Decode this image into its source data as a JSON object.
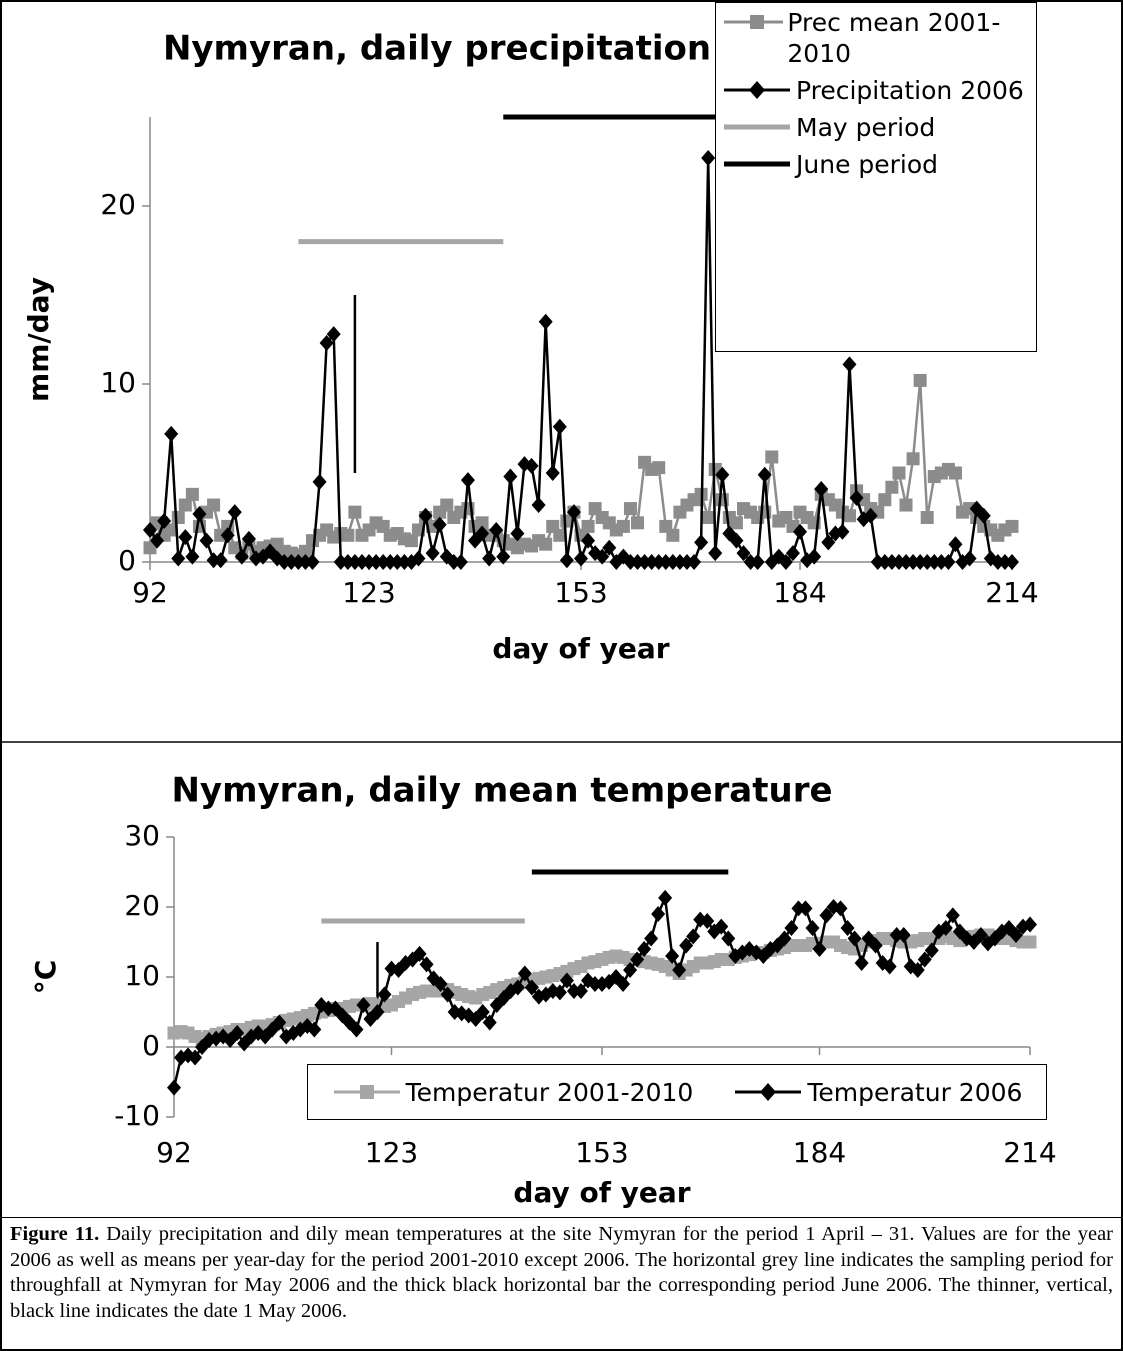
{
  "chart_data": [
    {
      "type": "line",
      "title": "Nymyran, daily precipitation",
      "x_label": "day of year",
      "y_label": "mm/day",
      "x": [
        92,
        93,
        94,
        95,
        96,
        97,
        98,
        99,
        100,
        101,
        102,
        103,
        104,
        105,
        106,
        107,
        108,
        109,
        110,
        111,
        112,
        113,
        114,
        115,
        116,
        117,
        118,
        119,
        120,
        121,
        122,
        123,
        124,
        125,
        126,
        127,
        128,
        129,
        130,
        131,
        132,
        133,
        134,
        135,
        136,
        137,
        138,
        139,
        140,
        141,
        142,
        143,
        144,
        145,
        146,
        147,
        148,
        149,
        150,
        151,
        152,
        153,
        154,
        155,
        156,
        157,
        158,
        159,
        160,
        161,
        162,
        163,
        164,
        165,
        166,
        167,
        168,
        169,
        170,
        171,
        172,
        173,
        174,
        175,
        176,
        177,
        178,
        179,
        180,
        181,
        182,
        183,
        184,
        185,
        186,
        187,
        188,
        189,
        190,
        191,
        192,
        193,
        194,
        195,
        196,
        197,
        198,
        199,
        200,
        201,
        202,
        203,
        204,
        205,
        206,
        207,
        208,
        209,
        210,
        211,
        212,
        213,
        214
      ],
      "xlim": [
        92,
        214
      ],
      "xticks": [
        92,
        123,
        153,
        184,
        214
      ],
      "ylim": [
        0,
        25
      ],
      "yticks": [
        0,
        10,
        20
      ],
      "legend": "top-right",
      "series": [
        {
          "name": "Prec mean 2001-2010",
          "color": "#8c8c8c",
          "marker": "square",
          "values": [
            0.8,
            2.2,
            1.5,
            1.8,
            2.5,
            3.2,
            3.8,
            2.0,
            2.8,
            3.2,
            1.5,
            2.0,
            0.8,
            0.5,
            1.0,
            0.6,
            0.8,
            0.9,
            1.0,
            0.6,
            0.5,
            0.4,
            0.6,
            1.2,
            1.5,
            1.8,
            1.4,
            1.6,
            1.5,
            2.8,
            1.5,
            1.8,
            2.2,
            2.0,
            1.5,
            1.6,
            1.3,
            1.2,
            1.8,
            2.5,
            2.0,
            2.8,
            3.2,
            2.5,
            2.8,
            3.0,
            2.0,
            2.2,
            1.5,
            1.5,
            1.2,
            1.0,
            0.8,
            1.0,
            0.9,
            1.2,
            1.0,
            2.0,
            1.5,
            2.3,
            2.8,
            1.5,
            2.0,
            3.0,
            2.5,
            2.2,
            1.8,
            2.0,
            3.0,
            2.2,
            5.6,
            5.2,
            5.3,
            2.0,
            1.5,
            2.8,
            3.2,
            3.5,
            3.8,
            2.5,
            5.2,
            3.5,
            2.5,
            2.2,
            3.0,
            2.8,
            2.5,
            2.8,
            5.9,
            2.3,
            2.5,
            2.0,
            2.8,
            2.5,
            2.2,
            3.8,
            3.5,
            3.2,
            2.8,
            2.6,
            4.0,
            3.5,
            3.0,
            2.8,
            3.5,
            4.2,
            5.0,
            3.2,
            5.8,
            10.2,
            2.5,
            4.8,
            5.0,
            5.2,
            5.0,
            2.8,
            3.0,
            2.5,
            2.0,
            1.8,
            1.5,
            1.8,
            2.0
          ]
        },
        {
          "name": "Precipitation 2006",
          "color": "#000000",
          "marker": "diamond",
          "values": [
            1.8,
            1.2,
            2.3,
            7.2,
            0.2,
            1.4,
            0.3,
            2.7,
            1.2,
            0.1,
            0.1,
            1.5,
            2.8,
            0.3,
            1.3,
            0.2,
            0.3,
            0.6,
            0.2,
            0,
            0,
            0,
            0,
            0,
            4.5,
            12.3,
            12.8,
            0,
            0,
            0,
            0,
            0,
            0,
            0,
            0,
            0,
            0,
            0,
            0.2,
            2.6,
            0.5,
            2.1,
            0.3,
            0,
            0,
            4.6,
            1.2,
            1.6,
            0.2,
            1.8,
            0.3,
            4.8,
            1.6,
            5.5,
            5.4,
            3.2,
            13.5,
            5.0,
            7.6,
            0.1,
            2.8,
            0.2,
            1.2,
            0.5,
            0.3,
            0.8,
            0,
            0.3,
            0,
            0,
            0,
            0,
            0,
            0,
            0,
            0,
            0,
            0,
            1.1,
            22.7,
            0.5,
            4.9,
            1.6,
            1.2,
            0.5,
            0,
            0,
            4.9,
            0,
            0.3,
            0,
            0.5,
            1.7,
            0.1,
            0.3,
            4.1,
            1.1,
            1.6,
            1.7,
            11.1,
            3.6,
            2.4,
            2.6,
            0,
            0,
            0,
            0,
            0,
            0,
            0,
            0,
            0,
            0,
            0,
            1.0,
            0,
            0.2,
            3.0,
            2.6,
            0.2,
            0,
            0,
            0
          ]
        },
        {
          "name": "May period",
          "color": "#a6a6a6",
          "width": 5,
          "x": [
            113,
            142
          ],
          "values": [
            18,
            18
          ]
        },
        {
          "name": "June period",
          "color": "#000000",
          "width": 5,
          "x": [
            142,
            172
          ],
          "values": [
            25,
            25
          ]
        }
      ],
      "extra_lines": [
        {
          "color": "#000000",
          "width": 2.5,
          "x": [
            121,
            121
          ],
          "values": [
            5,
            15
          ]
        }
      ]
    },
    {
      "type": "line",
      "title": "Nymyran, daily mean temperature",
      "x_label": "day of year",
      "y_label": "°C",
      "x": [
        92,
        93,
        94,
        95,
        96,
        97,
        98,
        99,
        100,
        101,
        102,
        103,
        104,
        105,
        106,
        107,
        108,
        109,
        110,
        111,
        112,
        113,
        114,
        115,
        116,
        117,
        118,
        119,
        120,
        121,
        122,
        123,
        124,
        125,
        126,
        127,
        128,
        129,
        130,
        131,
        132,
        133,
        134,
        135,
        136,
        137,
        138,
        139,
        140,
        141,
        142,
        143,
        144,
        145,
        146,
        147,
        148,
        149,
        150,
        151,
        152,
        153,
        154,
        155,
        156,
        157,
        158,
        159,
        160,
        161,
        162,
        163,
        164,
        165,
        166,
        167,
        168,
        169,
        170,
        171,
        172,
        173,
        174,
        175,
        176,
        177,
        178,
        179,
        180,
        181,
        182,
        183,
        184,
        185,
        186,
        187,
        188,
        189,
        190,
        191,
        192,
        193,
        194,
        195,
        196,
        197,
        198,
        199,
        200,
        201,
        202,
        203,
        204,
        205,
        206,
        207,
        208,
        209,
        210,
        211,
        212,
        213,
        214
      ],
      "xlim": [
        92,
        214
      ],
      "xticks": [
        92,
        123,
        153,
        184,
        214
      ],
      "ylim": [
        -10,
        30
      ],
      "yticks": [
        -10,
        0,
        10,
        20,
        30
      ],
      "legend": "bottom",
      "series": [
        {
          "name": "Temperatur 2001-2010",
          "color": "#a6a6a6",
          "marker": "square",
          "values": [
            2.0,
            2.2,
            2.0,
            1.5,
            1.2,
            1.5,
            1.8,
            2.0,
            2.2,
            2.5,
            2.5,
            2.8,
            3.0,
            3.0,
            3.2,
            3.5,
            3.8,
            4.0,
            4.2,
            4.5,
            4.8,
            5.0,
            5.2,
            5.5,
            5.5,
            5.8,
            6.0,
            6.0,
            6.2,
            6.0,
            5.8,
            6.0,
            6.5,
            7.0,
            7.5,
            7.8,
            8.0,
            8.0,
            8.0,
            8.2,
            7.8,
            7.5,
            7.2,
            7.0,
            7.5,
            7.8,
            8.2,
            8.5,
            8.8,
            9.0,
            9.2,
            9.5,
            9.8,
            10.0,
            10.2,
            10.5,
            10.8,
            11.2,
            11.5,
            12.0,
            12.2,
            12.5,
            12.8,
            13.0,
            12.8,
            12.5,
            12.5,
            12.2,
            12.0,
            11.8,
            11.5,
            11.0,
            10.5,
            11.0,
            11.5,
            12.0,
            12.0,
            12.2,
            12.5,
            12.5,
            12.8,
            13.0,
            13.2,
            13.5,
            13.5,
            13.8,
            14.0,
            14.2,
            14.5,
            14.5,
            14.5,
            14.8,
            14.8,
            15.0,
            15.0,
            14.5,
            14.2,
            14.0,
            14.5,
            15.0,
            15.2,
            15.5,
            15.5,
            15.2,
            15.0,
            15.0,
            15.2,
            15.5,
            15.5,
            15.5,
            15.8,
            15.5,
            15.2,
            15.5,
            15.8,
            16.0,
            16.0,
            15.8,
            15.5,
            15.5,
            15.2,
            15.0,
            15.0
          ]
        },
        {
          "name": "Temperatur 2006",
          "color": "#000000",
          "marker": "diamond",
          "values": [
            -5.8,
            -1.5,
            -1.2,
            -1.5,
            0.0,
            1.0,
            1.2,
            1.5,
            1.0,
            2.0,
            0.5,
            1.5,
            2.0,
            1.5,
            2.5,
            3.5,
            1.5,
            2.0,
            2.5,
            3.0,
            2.5,
            6.0,
            5.5,
            5.5,
            4.5,
            3.5,
            2.5,
            6.0,
            4.0,
            5.0,
            7.5,
            11.2,
            11.0,
            12.0,
            12.5,
            13.3,
            11.8,
            9.8,
            9.0,
            7.5,
            5.0,
            4.8,
            4.5,
            4.0,
            5.0,
            3.5,
            6.0,
            7.0,
            8.0,
            8.5,
            10.5,
            8.5,
            7.2,
            7.5,
            8.0,
            7.8,
            9.5,
            8.0,
            8.0,
            9.5,
            9.0,
            9.0,
            9.3,
            10.0,
            9.0,
            11.0,
            12.5,
            14.0,
            15.5,
            19.0,
            21.3,
            13.0,
            11.0,
            14.5,
            15.8,
            18.2,
            18.0,
            16.5,
            17.2,
            15.5,
            13.0,
            13.5,
            14.0,
            13.5,
            13.0,
            14.0,
            14.5,
            15.5,
            17.0,
            19.8,
            19.8,
            17.0,
            14.0,
            18.8,
            20.0,
            19.8,
            17.0,
            15.5,
            12.0,
            15.5,
            14.5,
            12.0,
            11.5,
            16.0,
            16.0,
            11.5,
            11.0,
            12.5,
            13.8,
            16.5,
            17.0,
            18.8,
            16.5,
            15.5,
            15.0,
            16.0,
            14.8,
            15.5,
            16.5,
            17.0,
            16.0,
            17.2,
            17.5
          ]
        }
      ],
      "extra_lines": [
        {
          "color": "#a6a6a6",
          "width": 5,
          "x": [
            113,
            142
          ],
          "values": [
            18,
            18
          ]
        },
        {
          "color": "#000000",
          "width": 5,
          "x": [
            143,
            171
          ],
          "values": [
            25,
            25
          ]
        },
        {
          "color": "#000000",
          "width": 2.5,
          "x": [
            121,
            121
          ],
          "values": [
            4,
            15
          ]
        }
      ]
    }
  ],
  "caption": {
    "label": "Figure 11.",
    "text": "Daily precipitation and dily mean temperatures at the site Nymyran for the period 1 April – 31. Values are for the year 2006 as well as means per year-day for the period 2001-2010 except 2006. The horizontal grey line indicates the sampling period for throughfall at Nymyran for May 2006 and the thick black horizontal bar the corresponding period June 2006. The thinner, vertical, black line indicates the date 1 May 2006."
  }
}
